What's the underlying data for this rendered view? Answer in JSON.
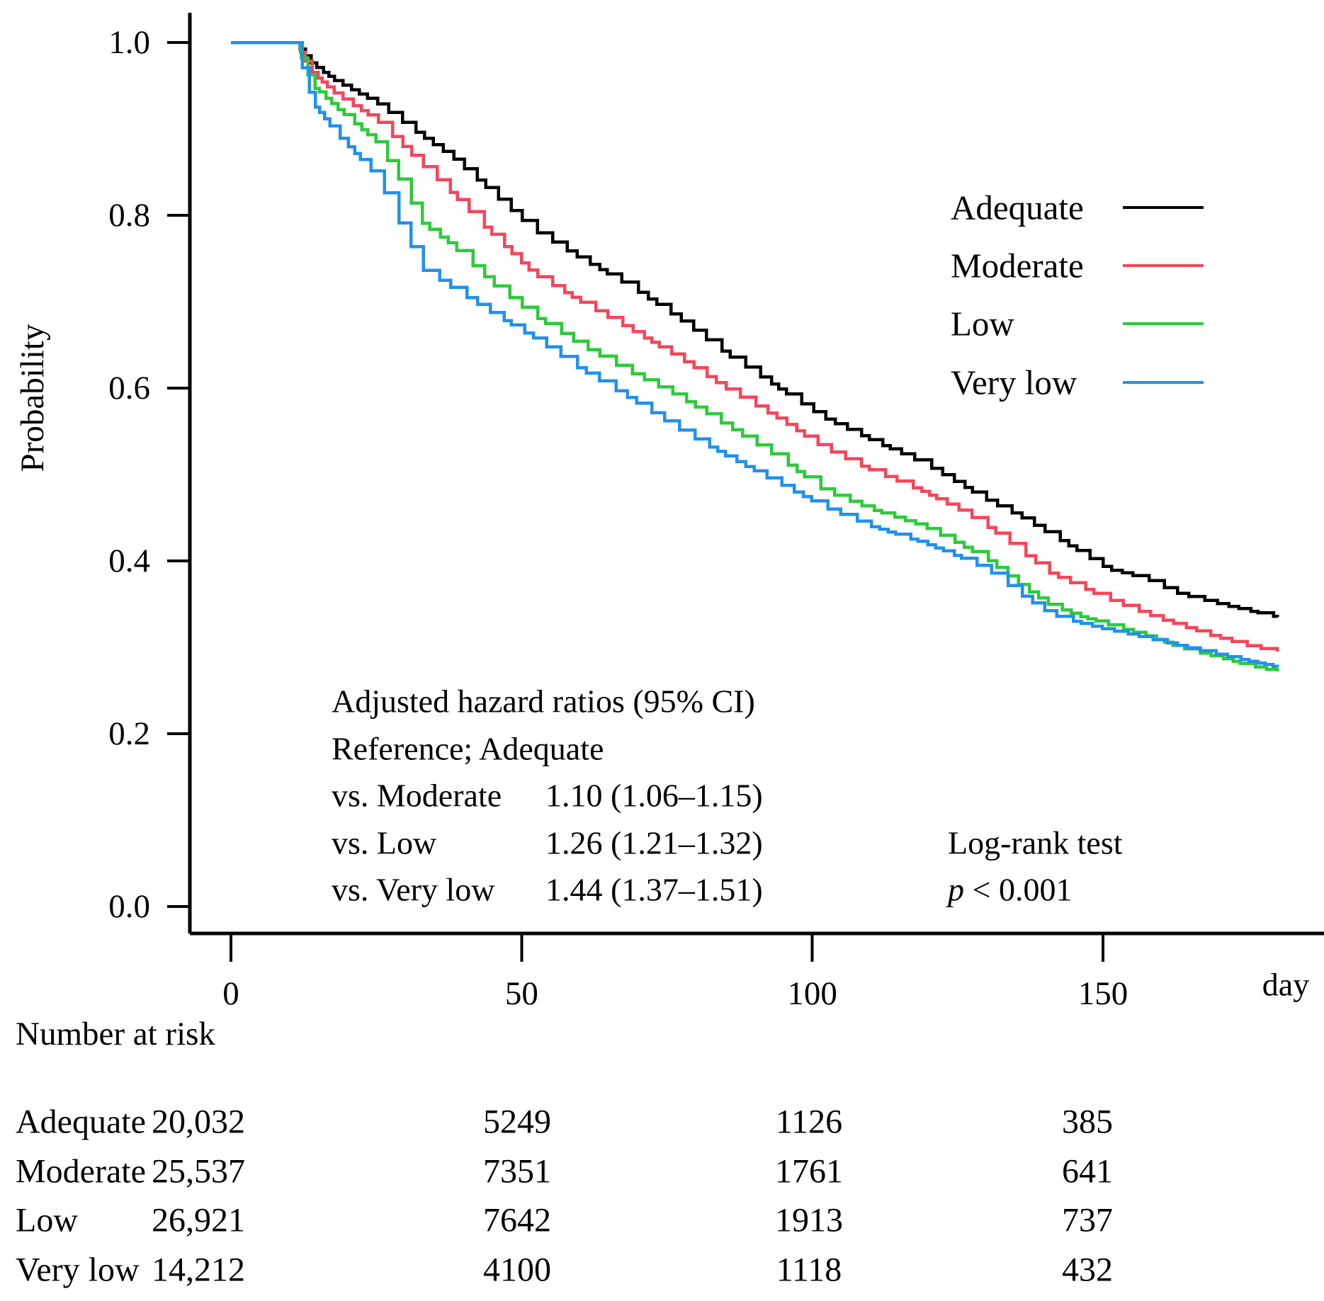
{
  "figure": {
    "ylabel": "Probability",
    "xunit": "day"
  },
  "legend": {
    "items": [
      {
        "label": "Adequate",
        "color": "#000000"
      },
      {
        "label": "Moderate",
        "color": "#f6455a"
      },
      {
        "label": "Low",
        "color": "#2bcb3a"
      },
      {
        "label": "Very low",
        "color": "#2191ec"
      }
    ]
  },
  "annotation": {
    "title": "Adjusted hazard ratios (95% CI)",
    "reference": "Reference; Adequate",
    "rows": [
      {
        "label": "vs. Moderate",
        "value": "1.10 (1.06–1.15)"
      },
      {
        "label": "vs. Low",
        "value": "1.26 (1.21–1.32)"
      },
      {
        "label": "vs. Very low",
        "value": "1.44 (1.37–1.51)"
      }
    ]
  },
  "stats": {
    "test_label": "Log-rank test",
    "p_symbol": "p",
    "p_rest": " < 0.001"
  },
  "risk_table": {
    "title": "Number at risk",
    "rows": [
      {
        "label": "Adequate",
        "values": [
          "20,032",
          "5249",
          "1126",
          "385"
        ]
      },
      {
        "label": "Moderate",
        "values": [
          "25,537",
          "7351",
          "1761",
          "641"
        ]
      },
      {
        "label": "Low",
        "values": [
          "26,921",
          "7642",
          "1913",
          "737"
        ]
      },
      {
        "label": "Very low",
        "values": [
          "14,212",
          "4100",
          "1118",
          "432"
        ]
      }
    ]
  },
  "chart_data": {
    "type": "line",
    "subtype": "kaplan-meier-step",
    "title": "",
    "xlabel": "day",
    "ylabel": "Probability",
    "xlim": [
      0,
      188
    ],
    "ylim": [
      0.0,
      1.03
    ],
    "grid": false,
    "legend_position": "upper right inside",
    "xticks": [
      "0",
      "50",
      "100",
      "150"
    ],
    "yticks": [
      "1.0",
      "0.8",
      "0.6",
      "0.4",
      "0.2",
      "0.0"
    ],
    "series": [
      {
        "name": "Adequate",
        "color": "#000000",
        "points": [
          [
            0,
            1
          ],
          [
            11,
            1
          ],
          [
            14,
            0.975
          ],
          [
            18,
            0.955
          ],
          [
            25,
            0.93
          ],
          [
            31,
            0.9
          ],
          [
            38,
            0.867
          ],
          [
            45,
            0.825
          ],
          [
            52,
            0.783
          ],
          [
            60,
            0.75
          ],
          [
            68,
            0.72
          ],
          [
            77,
            0.68
          ],
          [
            85,
            0.64
          ],
          [
            94,
            0.6
          ],
          [
            102,
            0.565
          ],
          [
            110,
            0.54
          ],
          [
            119,
            0.513
          ],
          [
            125,
            0.49
          ],
          [
            130,
            0.47
          ],
          [
            136,
            0.45
          ],
          [
            141,
            0.43
          ],
          [
            146,
            0.41
          ],
          [
            151,
            0.39
          ],
          [
            157,
            0.38
          ],
          [
            163,
            0.362
          ],
          [
            170,
            0.35
          ],
          [
            176,
            0.341
          ],
          [
            180,
            0.335
          ]
        ]
      },
      {
        "name": "Moderate",
        "color": "#f6455a",
        "points": [
          [
            0,
            1
          ],
          [
            11,
            1
          ],
          [
            14,
            0.965
          ],
          [
            18,
            0.94
          ],
          [
            25,
            0.91
          ],
          [
            31,
            0.87
          ],
          [
            38,
            0.825
          ],
          [
            43,
            0.79
          ],
          [
            52,
            0.732
          ],
          [
            60,
            0.7
          ],
          [
            68,
            0.67
          ],
          [
            77,
            0.635
          ],
          [
            85,
            0.6
          ],
          [
            94,
            0.565
          ],
          [
            102,
            0.53
          ],
          [
            110,
            0.505
          ],
          [
            119,
            0.48
          ],
          [
            125,
            0.46
          ],
          [
            130,
            0.44
          ],
          [
            136,
            0.41
          ],
          [
            141,
            0.385
          ],
          [
            146,
            0.37
          ],
          [
            151,
            0.355
          ],
          [
            156,
            0.342
          ],
          [
            161,
            0.33
          ],
          [
            168,
            0.315
          ],
          [
            174,
            0.303
          ],
          [
            180,
            0.295
          ]
        ]
      },
      {
        "name": "Low",
        "color": "#2bcb3a",
        "points": [
          [
            0,
            1
          ],
          [
            11,
            1
          ],
          [
            14,
            0.95
          ],
          [
            18,
            0.925
          ],
          [
            25,
            0.885
          ],
          [
            29,
            0.84
          ],
          [
            33,
            0.79
          ],
          [
            38,
            0.765
          ],
          [
            45,
            0.72
          ],
          [
            52,
            0.684
          ],
          [
            60,
            0.65
          ],
          [
            68,
            0.62
          ],
          [
            77,
            0.59
          ],
          [
            85,
            0.557
          ],
          [
            94,
            0.52
          ],
          [
            102,
            0.481
          ],
          [
            110,
            0.46
          ],
          [
            119,
            0.44
          ],
          [
            125,
            0.42
          ],
          [
            130,
            0.402
          ],
          [
            136,
            0.37
          ],
          [
            141,
            0.348
          ],
          [
            146,
            0.336
          ],
          [
            151,
            0.326
          ],
          [
            158,
            0.312
          ],
          [
            163,
            0.3
          ],
          [
            170,
            0.288
          ],
          [
            175,
            0.279
          ],
          [
            180,
            0.272
          ]
        ]
      },
      {
        "name": "Very low",
        "color": "#2191ec",
        "points": [
          [
            0,
            1
          ],
          [
            11,
            1
          ],
          [
            14,
            0.93
          ],
          [
            18,
            0.895
          ],
          [
            25,
            0.845
          ],
          [
            29,
            0.79
          ],
          [
            33,
            0.737
          ],
          [
            38,
            0.716
          ],
          [
            45,
            0.686
          ],
          [
            52,
            0.658
          ],
          [
            60,
            0.622
          ],
          [
            68,
            0.59
          ],
          [
            77,
            0.552
          ],
          [
            85,
            0.522
          ],
          [
            94,
            0.49
          ],
          [
            102,
            0.462
          ],
          [
            110,
            0.44
          ],
          [
            119,
            0.421
          ],
          [
            125,
            0.405
          ],
          [
            130,
            0.39
          ],
          [
            136,
            0.36
          ],
          [
            141,
            0.338
          ],
          [
            146,
            0.328
          ],
          [
            151,
            0.32
          ],
          [
            158,
            0.31
          ],
          [
            163,
            0.302
          ],
          [
            170,
            0.291
          ],
          [
            175,
            0.284
          ],
          [
            180,
            0.277
          ]
        ]
      }
    ],
    "number_at_risk": {
      "time_points": [
        0,
        50,
        100,
        150
      ],
      "groups": [
        {
          "name": "Adequate",
          "counts": [
            20032,
            5249,
            1126,
            385
          ]
        },
        {
          "name": "Moderate",
          "counts": [
            25537,
            7351,
            1761,
            641
          ]
        },
        {
          "name": "Low",
          "counts": [
            26921,
            7642,
            1913,
            737
          ]
        },
        {
          "name": "Very low",
          "counts": [
            14212,
            4100,
            1118,
            432
          ]
        }
      ]
    },
    "hazard_ratios": [
      {
        "comparison": "vs. Moderate",
        "hr": 1.1,
        "ci_low": 1.06,
        "ci_high": 1.15
      },
      {
        "comparison": "vs. Low",
        "hr": 1.26,
        "ci_low": 1.21,
        "ci_high": 1.32
      },
      {
        "comparison": "vs. Very low",
        "hr": 1.44,
        "ci_low": 1.37,
        "ci_high": 1.51
      }
    ],
    "log_rank_p": "< 0.001"
  }
}
